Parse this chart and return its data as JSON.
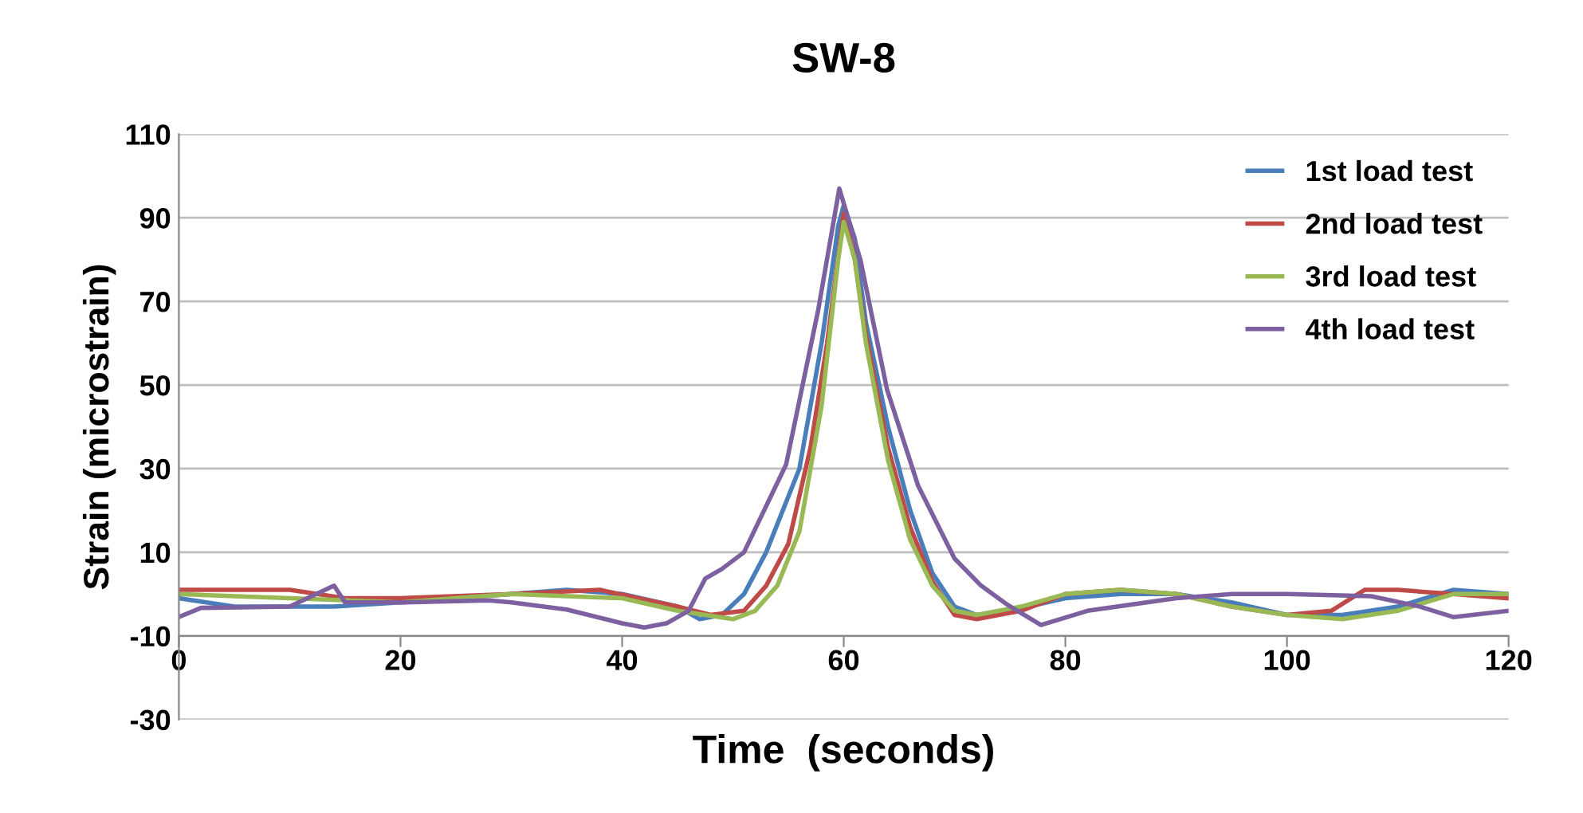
{
  "chart_data": {
    "type": "line",
    "title": "SW-8",
    "xlabel": "Time  (seconds)",
    "ylabel": "Strain (microstrain)",
    "xlim": [
      0,
      120
    ],
    "xticks": [
      0,
      20,
      40,
      60,
      80,
      100,
      120
    ],
    "ylim": [
      -30,
      110
    ],
    "yticks": [
      -30,
      -10,
      10,
      30,
      50,
      70,
      90,
      110
    ],
    "grid": "y",
    "legend": "top right",
    "marker": "none",
    "line_style": "solid",
    "series": [
      {
        "name": "1st load test",
        "color": "#4a7ebb",
        "x": [
          0,
          5,
          10,
          14,
          20,
          30,
          35,
          40,
          45,
          47,
          49,
          51,
          53,
          56,
          58,
          59.5,
          60,
          61,
          62,
          64,
          66,
          68,
          70,
          72,
          75,
          80,
          85,
          90,
          95,
          100,
          105,
          110,
          115,
          120
        ],
        "values": [
          -1,
          -3,
          -3,
          -3,
          -2,
          0,
          1,
          0,
          -3,
          -6,
          -5,
          0,
          10,
          30,
          60,
          88,
          93,
          85,
          65,
          40,
          20,
          5,
          -3,
          -5,
          -4,
          -1,
          0,
          0,
          -2,
          -5,
          -5,
          -3,
          1,
          0
        ]
      },
      {
        "name": "2nd load test",
        "color": "#be4b48",
        "x": [
          0,
          10,
          15,
          20,
          30,
          38,
          45,
          48,
          51,
          53,
          55,
          57,
          58.5,
          60,
          61,
          62,
          64,
          66,
          68,
          70,
          72,
          76,
          80,
          85,
          90,
          95,
          100,
          104,
          107,
          110,
          115,
          120
        ],
        "values": [
          1,
          1,
          -1,
          -1,
          0,
          1,
          -3,
          -5,
          -4,
          2,
          12,
          35,
          60,
          91,
          80,
          62,
          35,
          16,
          3,
          -5,
          -6,
          -4,
          0,
          1,
          0,
          -3,
          -5,
          -4,
          1,
          1,
          0,
          -1
        ]
      },
      {
        "name": "3rd load test",
        "color": "#98b954",
        "x": [
          0,
          10,
          20,
          30,
          40,
          45,
          50,
          52,
          54,
          56,
          58,
          59.5,
          60,
          61,
          62,
          64,
          66,
          68,
          70,
          72,
          76,
          80,
          85,
          90,
          95,
          100,
          105,
          110,
          115,
          120
        ],
        "values": [
          0,
          -1,
          -2,
          0,
          -1,
          -4,
          -6,
          -4,
          2,
          15,
          45,
          80,
          89,
          80,
          60,
          32,
          13,
          2,
          -4,
          -5,
          -3,
          0,
          1,
          0,
          -3,
          -5,
          -6,
          -4,
          0,
          0
        ]
      },
      {
        "name": "4th load test",
        "color": "#7d60a0",
        "x": [
          0,
          2,
          10,
          14,
          15,
          20,
          28,
          30,
          35,
          40,
          42,
          44,
          46,
          47.5,
          49,
          51,
          54.8,
          57.7,
          59.6,
          61.5,
          63.9,
          66.7,
          70,
          72.4,
          74.8,
          77.8,
          82,
          90,
          95,
          100,
          107.6,
          112,
          115,
          120
        ],
        "values": [
          -5.5,
          -3.3,
          -3,
          2,
          -2,
          -2,
          -1.5,
          -2,
          -3.7,
          -7,
          -8,
          -7,
          -4,
          3.7,
          6,
          10,
          31,
          68,
          97,
          80,
          49,
          26,
          8.5,
          2,
          -2.6,
          -7.4,
          -4,
          -1,
          0,
          0,
          -0.5,
          -3,
          -5.5,
          -4
        ]
      }
    ]
  }
}
